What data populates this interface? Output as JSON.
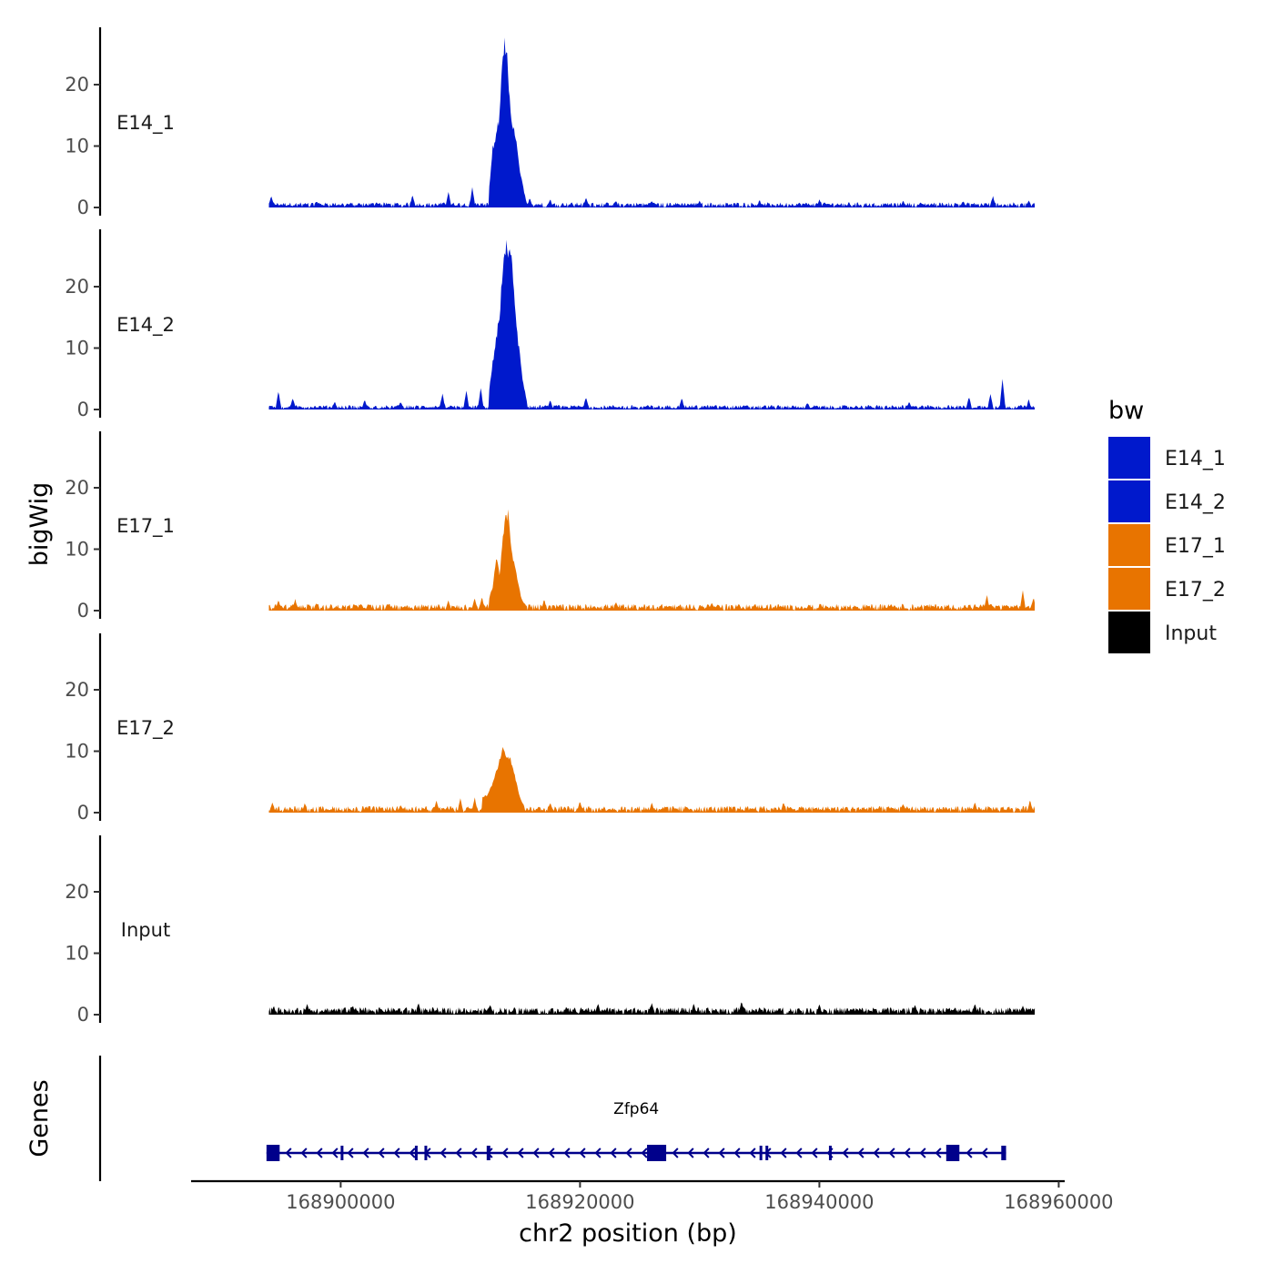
{
  "chart_data": {
    "type": "area",
    "ylabel": "bigWig",
    "xlabel": "chr2 position (bp)",
    "xlim": [
      168887500,
      168960500
    ],
    "ylim": [
      0,
      30
    ],
    "y_ticks": [
      0,
      10,
      20
    ],
    "x_ticks": [
      168900000,
      168920000,
      168940000,
      168960000
    ],
    "x_tick_labels": [
      "168900000",
      "168920000",
      "168940000",
      "168960000"
    ],
    "track_start": 168894000,
    "track_end": 168958000,
    "peak": {
      "start": 168912400,
      "end": 168915500
    },
    "series": [
      {
        "name": "E14_1",
        "color": "#0019CC",
        "baseline": 0.7,
        "peak_profile": [
          [
            168912400,
            3
          ],
          [
            168912700,
            10
          ],
          [
            168913000,
            12
          ],
          [
            168913300,
            16
          ],
          [
            168913500,
            24
          ],
          [
            168913700,
            27.5
          ],
          [
            168913900,
            26
          ],
          [
            168914200,
            16
          ],
          [
            168914600,
            12
          ],
          [
            168915000,
            6
          ],
          [
            168915500,
            1
          ]
        ],
        "spikes": [
          [
            168894200,
            1.8
          ],
          [
            168898000,
            0.9
          ],
          [
            168903000,
            0.8
          ],
          [
            168906000,
            2.0
          ],
          [
            168909000,
            2.5
          ],
          [
            168911000,
            3.2
          ],
          [
            168915800,
            1.5
          ],
          [
            168917500,
            1.3
          ],
          [
            168920500,
            1.5
          ],
          [
            168923000,
            1.0
          ],
          [
            168926000,
            1.0
          ],
          [
            168930000,
            1.0
          ],
          [
            168935000,
            1.1
          ],
          [
            168940000,
            1.2
          ],
          [
            168947000,
            1.0
          ],
          [
            168952000,
            1.0
          ],
          [
            168954500,
            1.8
          ],
          [
            168957500,
            1.0
          ]
        ]
      },
      {
        "name": "E14_2",
        "color": "#0019CC",
        "baseline": 0.6,
        "peak_profile": [
          [
            168912400,
            3
          ],
          [
            168912700,
            8
          ],
          [
            168913000,
            12
          ],
          [
            168913300,
            16
          ],
          [
            168913600,
            26
          ],
          [
            168913900,
            27.5
          ],
          [
            168914200,
            27
          ],
          [
            168914500,
            19
          ],
          [
            168914800,
            12
          ],
          [
            168915200,
            5
          ],
          [
            168915600,
            1
          ]
        ],
        "spikes": [
          [
            168894800,
            3.0
          ],
          [
            168896000,
            1.8
          ],
          [
            168899500,
            1.2
          ],
          [
            168902000,
            1.5
          ],
          [
            168905000,
            1.2
          ],
          [
            168908500,
            2.5
          ],
          [
            168910500,
            3.0
          ],
          [
            168911700,
            3.5
          ],
          [
            168917500,
            1.4
          ],
          [
            168920500,
            2.0
          ],
          [
            168928500,
            1.8
          ],
          [
            168939000,
            1.0
          ],
          [
            168947500,
            1.2
          ],
          [
            168952500,
            2.0
          ],
          [
            168954300,
            2.5
          ],
          [
            168955300,
            5.0
          ],
          [
            168957500,
            1.5
          ]
        ]
      },
      {
        "name": "E17_1",
        "color": "#E87400",
        "baseline": 0.9,
        "peak_profile": [
          [
            168912400,
            2
          ],
          [
            168912700,
            4
          ],
          [
            168913000,
            9
          ],
          [
            168913300,
            6
          ],
          [
            168913500,
            11
          ],
          [
            168913700,
            15
          ],
          [
            168914000,
            16.5
          ],
          [
            168914300,
            10
          ],
          [
            168914700,
            6
          ],
          [
            168915100,
            2
          ],
          [
            168915500,
            0.8
          ]
        ],
        "spikes": [
          [
            168894800,
            1.6
          ],
          [
            168896200,
            1.8
          ],
          [
            168898000,
            1.2
          ],
          [
            168904000,
            1.0
          ],
          [
            168909000,
            1.6
          ],
          [
            168911200,
            2.0
          ],
          [
            168911800,
            2.2
          ],
          [
            168917000,
            1.7
          ],
          [
            168923000,
            1.3
          ],
          [
            168931000,
            1.2
          ],
          [
            168946000,
            1.1
          ],
          [
            168954000,
            2.5
          ],
          [
            168957000,
            3.2
          ],
          [
            168957900,
            2.0
          ]
        ]
      },
      {
        "name": "E17_2",
        "color": "#E87400",
        "baseline": 0.9,
        "peak_profile": [
          [
            168911800,
            2.5
          ],
          [
            168912300,
            3
          ],
          [
            168912700,
            5
          ],
          [
            168913100,
            7.5
          ],
          [
            168913500,
            11
          ],
          [
            168913800,
            10
          ],
          [
            168914200,
            9
          ],
          [
            168914600,
            6
          ],
          [
            168915000,
            2.5
          ],
          [
            168915400,
            0.8
          ]
        ],
        "spikes": [
          [
            168894300,
            1.6
          ],
          [
            168897000,
            1.4
          ],
          [
            168905000,
            1.2
          ],
          [
            168908000,
            2.0
          ],
          [
            168910000,
            2.2
          ],
          [
            168911200,
            2.4
          ],
          [
            168917500,
            1.6
          ],
          [
            168920000,
            1.8
          ],
          [
            168926000,
            1.5
          ],
          [
            168937000,
            1.6
          ],
          [
            168947000,
            1.4
          ],
          [
            168953000,
            1.6
          ],
          [
            168957600,
            2.0
          ]
        ]
      },
      {
        "name": "Input",
        "color": "#000000",
        "baseline": 1.0,
        "peak_profile": [],
        "spikes": [
          [
            168894400,
            1.4
          ],
          [
            168897200,
            1.6
          ],
          [
            168901000,
            1.4
          ],
          [
            168906500,
            1.8
          ],
          [
            168912500,
            1.6
          ],
          [
            168921500,
            1.8
          ],
          [
            168926000,
            1.7
          ],
          [
            168929500,
            1.7
          ],
          [
            168933500,
            2.1
          ],
          [
            168940000,
            1.6
          ],
          [
            168948000,
            1.6
          ],
          [
            168953000,
            1.7
          ],
          [
            168957000,
            1.4
          ]
        ]
      }
    ],
    "legend": {
      "title": "bw",
      "position": "right",
      "entries": [
        {
          "label": "E14_1",
          "color": "#0019CC"
        },
        {
          "label": "E14_2",
          "color": "#0019CC"
        },
        {
          "label": "E17_1",
          "color": "#E87400"
        },
        {
          "label": "E17_2",
          "color": "#E87400"
        },
        {
          "label": "Input",
          "color": "#000000"
        }
      ]
    },
    "genes": {
      "panel_label": "Genes",
      "name": "Zfp64",
      "color": "#00008B",
      "strand": "-",
      "start": 168893800,
      "end": 168955600,
      "exons": [
        [
          168893800,
          168894900
        ],
        [
          168900000,
          168900200
        ],
        [
          168906200,
          168906300
        ],
        [
          168907000,
          168907100
        ],
        [
          168912200,
          168912500
        ],
        [
          168925600,
          168927200
        ],
        [
          168935000,
          168935200
        ],
        [
          168935500,
          168935700
        ],
        [
          168940800,
          168941000
        ],
        [
          168950600,
          168951700
        ],
        [
          168955200,
          168955600
        ]
      ]
    }
  }
}
